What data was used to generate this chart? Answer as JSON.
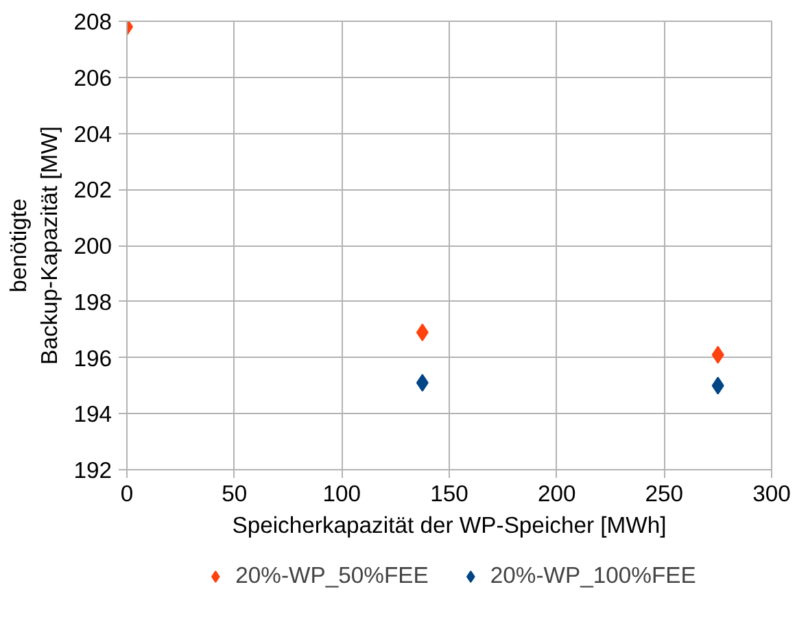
{
  "chart_data": {
    "type": "scatter",
    "xlabel": "Speicherkapazität der WP-Speicher [MWh]",
    "ylabel": "benötigte\nBackup-Kapazität [MW]",
    "series": [
      {
        "name": "20%-WP_50%FEE",
        "color": "#ff420e",
        "x": [
          0,
          137.5,
          275
        ],
        "values": [
          207.8,
          196.9,
          196.1
        ]
      },
      {
        "name": "20%-WP_100%FEE",
        "color": "#004586",
        "x": [
          137.5,
          275
        ],
        "values": [
          195.1,
          195.0
        ]
      }
    ],
    "xlim": [
      0,
      300
    ],
    "xticks": [
      0,
      50,
      100,
      150,
      200,
      250,
      300
    ],
    "ylim": [
      192,
      208
    ],
    "yticks": [
      192,
      194,
      196,
      198,
      200,
      202,
      204,
      206,
      208
    ],
    "grid": true,
    "legend": "bottom",
    "marker": "diamond"
  }
}
